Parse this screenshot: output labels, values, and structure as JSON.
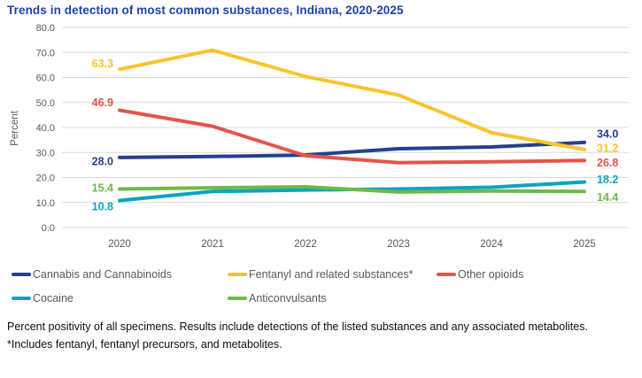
{
  "title": "Trends in detection of most common substances, Indiana, 2020-2025",
  "chart_data": {
    "type": "line",
    "title": "Trends in detection of most common substances, Indiana, 2020-2025",
    "xlabel": "",
    "ylabel": "Percent",
    "ylim": [
      0,
      80
    ],
    "ytick_step": 10,
    "grid": true,
    "legend_position": "bottom",
    "categories": [
      "2020",
      "2021",
      "2022",
      "2023",
      "2024",
      "2025"
    ],
    "series": [
      {
        "name": "Cannabis and Cannabinoids",
        "color": "#24408F",
        "values": [
          28.0,
          28.4,
          29.0,
          31.5,
          32.2,
          34.0
        ],
        "start_label": "28.0",
        "end_label": "34.0"
      },
      {
        "name": "Fentanyl and related substances*",
        "color": "#FBC42C",
        "values": [
          63.3,
          70.9,
          60.4,
          53.0,
          37.9,
          31.2
        ],
        "start_label": "63.3",
        "end_label": "31.2"
      },
      {
        "name": "Other opioids",
        "color": "#E4544A",
        "values": [
          46.9,
          40.5,
          28.7,
          25.9,
          26.3,
          26.8
        ],
        "start_label": "46.9",
        "end_label": "26.8"
      },
      {
        "name": "Cocaine",
        "color": "#0DA2C6",
        "values": [
          10.8,
          14.4,
          15.0,
          15.4,
          16.1,
          18.2
        ],
        "start_label": "10.8",
        "end_label": "18.2"
      },
      {
        "name": "Anticonvulsants",
        "color": "#6CB949",
        "values": [
          15.4,
          15.9,
          16.3,
          14.2,
          14.6,
          14.4
        ],
        "start_label": "15.4",
        "end_label": "14.4"
      }
    ]
  },
  "footnotes": {
    "line1": "Percent positivity of all specimens. Results include detections of the listed substances and any associated metabolites.",
    "line2": "*Includes fentanyl, fentanyl precursors, and metabolites."
  },
  "colors": {
    "title": "#2042A8",
    "axis_text": "#595959",
    "gridline": "#D9D9D9",
    "footer_text": "#0d0d0d"
  }
}
